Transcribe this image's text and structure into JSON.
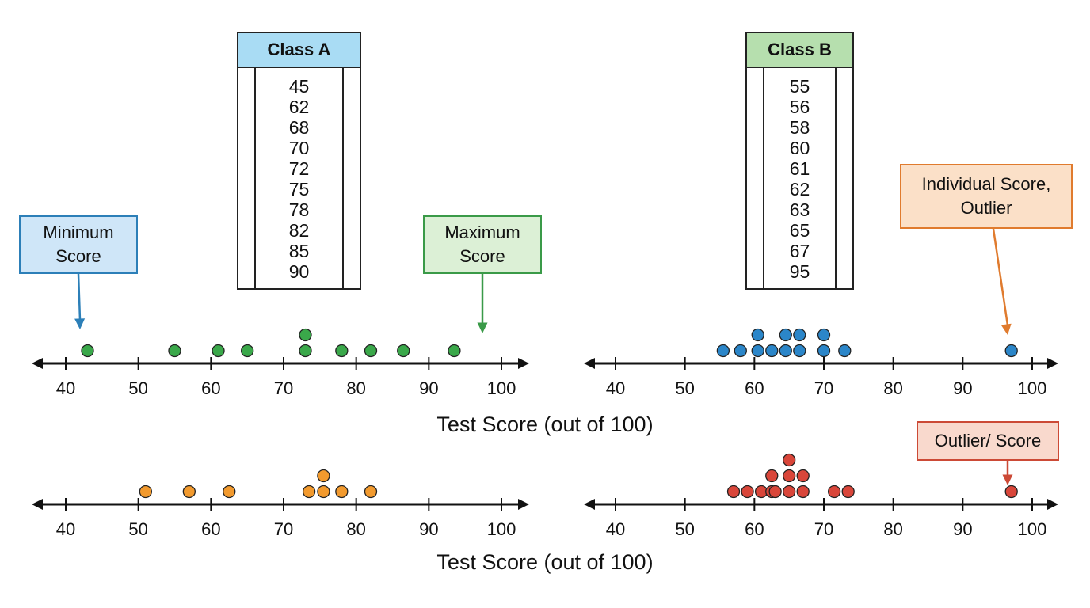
{
  "tables": [
    {
      "title": "Class A",
      "header_color": "#a9dcf4",
      "values": [
        "45",
        "62",
        "68",
        "70",
        "72",
        "75",
        "78",
        "82",
        "85",
        "90"
      ]
    },
    {
      "title": "Class B",
      "header_color": "#b6dfae",
      "values": [
        "55",
        "56",
        "58",
        "60",
        "61",
        "62",
        "63",
        "65",
        "67",
        "95"
      ]
    }
  ],
  "callouts": [
    {
      "lines": [
        "Minimum",
        "Score"
      ],
      "fill": "#cfe6f8",
      "border": "#2c7fb8"
    },
    {
      "lines": [
        "Maximum",
        "Score"
      ],
      "fill": "#dcf0d6",
      "border": "#3a9a48"
    },
    {
      "lines": [
        "Individual Score,",
        "Outlier"
      ],
      "fill": "#fbe0c8",
      "border": "#e07b2e"
    },
    {
      "lines": [
        "Outlier/ Score"
      ],
      "fill": "#f9d9cd",
      "border": "#cc4a36"
    }
  ],
  "axis_titles": [
    "Test Score (out of 100)",
    "Test Score (out of 100)"
  ],
  "chart_data": [
    {
      "type": "scatter",
      "xlim": [
        35,
        105
      ],
      "ticks": [
        40,
        50,
        60,
        70,
        80,
        90,
        100
      ],
      "color": "#3aa84a",
      "points": [
        [
          43,
          0
        ],
        [
          55,
          0
        ],
        [
          61,
          0
        ],
        [
          65,
          0
        ],
        [
          73,
          0
        ],
        [
          73,
          1
        ],
        [
          78,
          0
        ],
        [
          82,
          0
        ],
        [
          86.5,
          0
        ],
        [
          93.5,
          0
        ]
      ]
    },
    {
      "type": "scatter",
      "xlim": [
        35,
        105
      ],
      "ticks": [
        40,
        50,
        60,
        70,
        80,
        90,
        100
      ],
      "color": "#2b86c9",
      "points": [
        [
          55.5,
          0
        ],
        [
          58,
          0
        ],
        [
          60.5,
          0
        ],
        [
          60.5,
          1
        ],
        [
          62.5,
          0
        ],
        [
          64.5,
          0
        ],
        [
          64.5,
          1
        ],
        [
          66.5,
          0
        ],
        [
          66.5,
          1
        ],
        [
          70,
          0
        ],
        [
          70,
          1
        ],
        [
          73,
          0
        ],
        [
          97,
          0
        ]
      ]
    },
    {
      "type": "scatter",
      "xlim": [
        35,
        105
      ],
      "ticks": [
        40,
        50,
        60,
        70,
        80,
        90,
        100
      ],
      "color": "#f29a2e",
      "points": [
        [
          51,
          0
        ],
        [
          57,
          0
        ],
        [
          62.5,
          0
        ],
        [
          73.5,
          0
        ],
        [
          75.5,
          0
        ],
        [
          75.5,
          1
        ],
        [
          78,
          0
        ],
        [
          82,
          0
        ]
      ]
    },
    {
      "type": "scatter",
      "xlim": [
        35,
        105
      ],
      "ticks": [
        40,
        50,
        60,
        70,
        80,
        90,
        100
      ],
      "color": "#d9463a",
      "points": [
        [
          57,
          0
        ],
        [
          59,
          0
        ],
        [
          61,
          0
        ],
        [
          62.5,
          0
        ],
        [
          62.5,
          1
        ],
        [
          63,
          0
        ],
        [
          65,
          0
        ],
        [
          65,
          1
        ],
        [
          65,
          2
        ],
        [
          67,
          0
        ],
        [
          67,
          1
        ],
        [
          71.5,
          0
        ],
        [
          73.5,
          0
        ],
        [
          97,
          0
        ]
      ]
    }
  ]
}
